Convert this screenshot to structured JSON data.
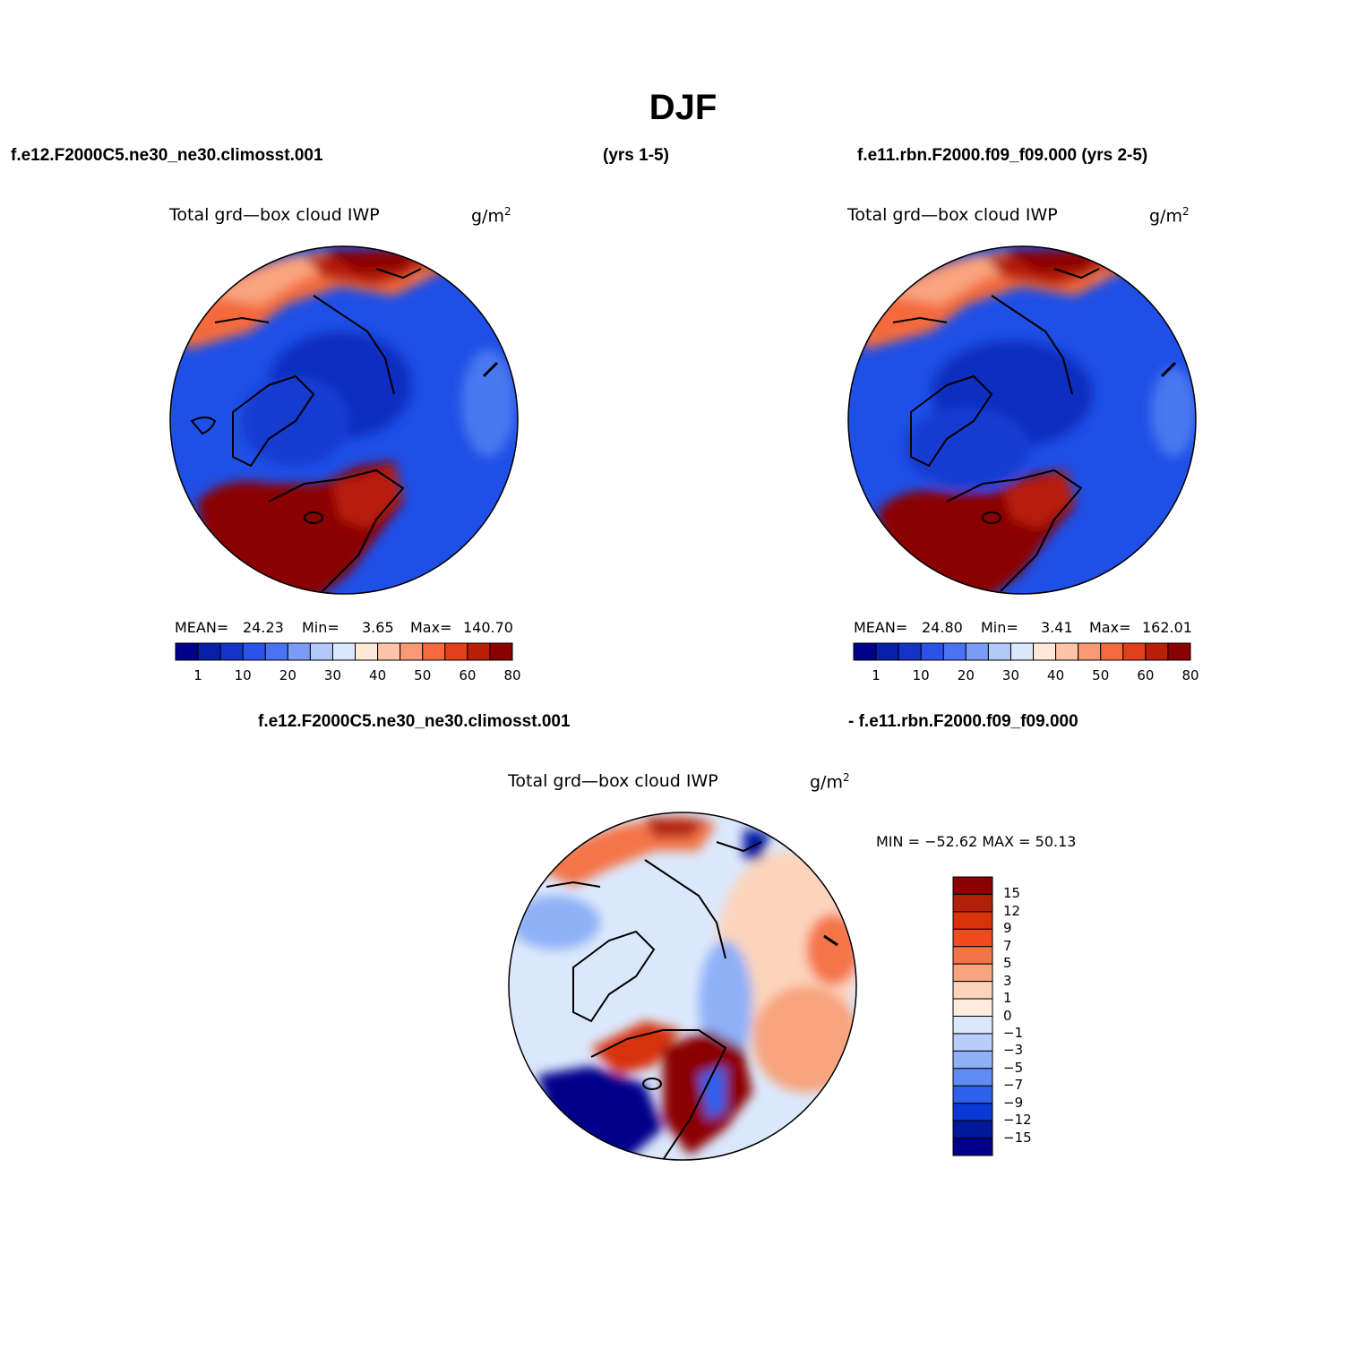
{
  "figure": {
    "title": "DJF",
    "left_header": "f.e12.F2000C5.ne30_ne30.climosst.001",
    "left_header_years": "(yrs 1-5)",
    "right_header": "f.e11.rbn.F2000.f09_f09.000 (yrs 2-5)",
    "diff_header_a": "f.e12.F2000C5.ne30_ne30.climosst.001",
    "diff_header_b": "- f.e11.rbn.F2000.f09_f09.000"
  },
  "panels": {
    "left": {
      "variable": "Total grd—box cloud IWP",
      "units_base": "g/m",
      "units_exp": "2",
      "mean_label": "MEAN=",
      "mean": "24.23",
      "min_label": "Min=",
      "min": "3.65",
      "max_label": "Max=",
      "max": "140.70"
    },
    "right": {
      "variable": "Total grd—box cloud IWP",
      "units_base": "g/m",
      "units_exp": "2",
      "mean_label": "MEAN=",
      "mean": "24.80",
      "min_label": "Min=",
      "min": "3.41",
      "max_label": "Max=",
      "max": "162.01"
    },
    "diff": {
      "variable": "Total grd—box cloud IWP",
      "units_base": "g/m",
      "units_exp": "2",
      "minmax_text": "MIN = −52.62 MAX =  50.13"
    }
  },
  "colorbars": {
    "main": {
      "colors": [
        "#00008b",
        "#0a1fa8",
        "#1434c8",
        "#2a52e6",
        "#4a72f2",
        "#7a9cf6",
        "#b2c9f9",
        "#dbe8fc",
        "#ffe8d8",
        "#fcc4a8",
        "#f89a74",
        "#f46a3c",
        "#e2401a",
        "#b81e08",
        "#8b0000"
      ],
      "tick_labels": [
        "1",
        "10",
        "20",
        "30",
        "40",
        "50",
        "60",
        "80"
      ]
    },
    "diff": {
      "colors": [
        "#8b0000",
        "#b2200a",
        "#d83208",
        "#f04a1e",
        "#f4744a",
        "#f8a47e",
        "#fcd4bc",
        "#ffece0",
        "#dbe8fc",
        "#b8cdfa",
        "#8fb0f7",
        "#5f8cf4",
        "#2f60ec",
        "#0a38d4",
        "#00199c",
        "#00008b"
      ],
      "tick_labels": [
        "15",
        "12",
        "9",
        "7",
        "5",
        "3",
        "1",
        "0",
        "−1",
        "−3",
        "−5",
        "−7",
        "−9",
        "−12",
        "−15"
      ]
    }
  }
}
